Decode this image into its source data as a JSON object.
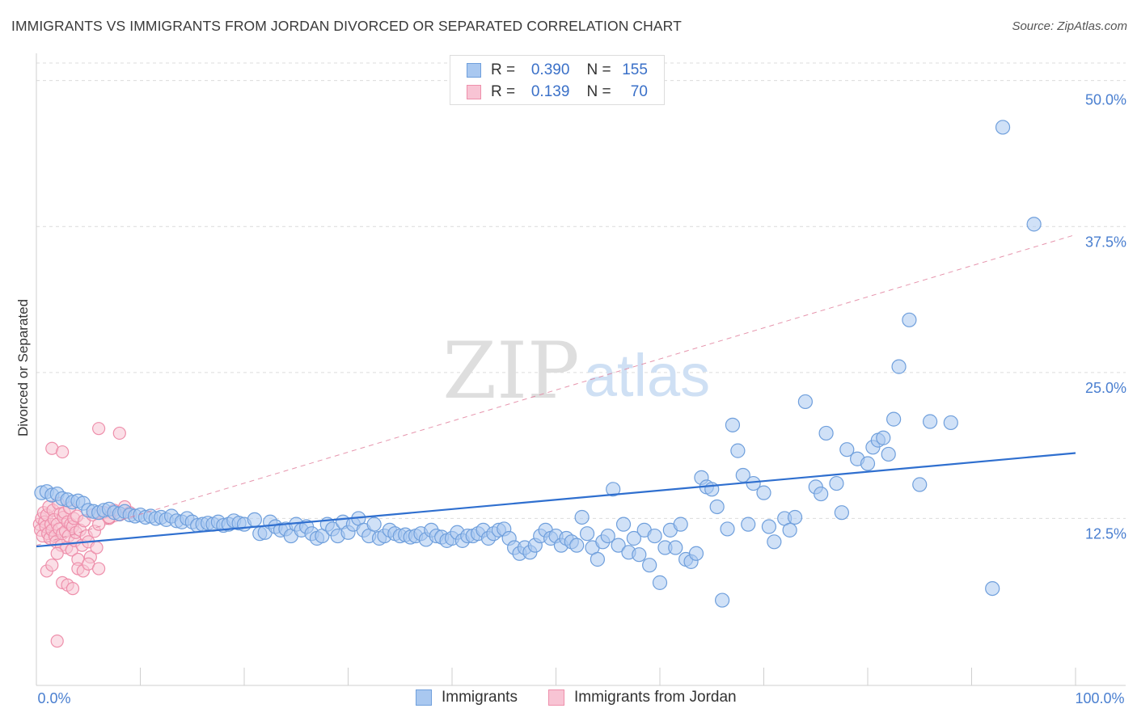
{
  "title": "IMMIGRANTS VS IMMIGRANTS FROM JORDAN DIVORCED OR SEPARATED CORRELATION CHART",
  "source": "Source: ZipAtlas.com",
  "watermark": {
    "zip": "ZIP",
    "atlas": "atlas"
  },
  "legend_top": [
    {
      "r_label": "R =",
      "r_value": "0.390",
      "n_label": "N =",
      "n_value": "155"
    },
    {
      "r_label": "R =",
      "r_value": "0.139",
      "n_label": "N =",
      "n_value": "70"
    }
  ],
  "legend_bottom": [
    "Immigrants",
    "Immigrants from Jordan"
  ],
  "colors": {
    "blue_fill": "#a9c8f0",
    "blue_stroke": "#6f9fdc",
    "blue_line": "#2f6fcf",
    "pink_fill": "#f8c4d4",
    "pink_stroke": "#ee8fab",
    "pink_line": "#e07a98",
    "grid": "#dcdcdc",
    "axis_text": "#4a7fd0"
  },
  "chart_data": {
    "type": "scatter",
    "title": "IMMIGRANTS VS IMMIGRANTS FROM JORDAN DIVORCED OR SEPARATED CORRELATION CHART",
    "xlabel": "",
    "ylabel": "Divorced or Separated",
    "xlim": [
      0,
      100
    ],
    "ylim": [
      0,
      51.5
    ],
    "x_tick_labels": [
      "0.0%",
      "100.0%"
    ],
    "y_ticks": [
      12.5,
      25.0,
      37.5,
      50.0
    ],
    "y_tick_labels": [
      "12.5%",
      "25.0%",
      "37.5%",
      "50.0%"
    ],
    "grid": true,
    "legend_position": "top-center",
    "series": [
      {
        "name": "Immigrants",
        "color": "#6f9fdc",
        "trend": {
          "x": [
            0,
            100
          ],
          "y": [
            10.1,
            18.1
          ],
          "style": "solid"
        },
        "points": [
          [
            0.5,
            14.7
          ],
          [
            1.0,
            14.8
          ],
          [
            1.5,
            14.5
          ],
          [
            2.0,
            14.6
          ],
          [
            2.5,
            14.2
          ],
          [
            3.0,
            14.1
          ],
          [
            3.5,
            13.9
          ],
          [
            4.0,
            14.0
          ],
          [
            4.5,
            13.8
          ],
          [
            5.0,
            13.2
          ],
          [
            5.5,
            13.1
          ],
          [
            6.0,
            13.0
          ],
          [
            6.5,
            13.2
          ],
          [
            7.0,
            13.3
          ],
          [
            7.5,
            13.0
          ],
          [
            8.0,
            12.9
          ],
          [
            8.5,
            13.1
          ],
          [
            9.0,
            12.8
          ],
          [
            9.5,
            12.7
          ],
          [
            10.0,
            12.8
          ],
          [
            10.5,
            12.6
          ],
          [
            11.0,
            12.7
          ],
          [
            11.5,
            12.5
          ],
          [
            12.0,
            12.6
          ],
          [
            12.5,
            12.4
          ],
          [
            13.0,
            12.7
          ],
          [
            13.5,
            12.3
          ],
          [
            14.0,
            12.2
          ],
          [
            14.5,
            12.5
          ],
          [
            15.0,
            12.2
          ],
          [
            15.5,
            11.9
          ],
          [
            16.0,
            12.0
          ],
          [
            16.5,
            12.1
          ],
          [
            17.0,
            12.0
          ],
          [
            17.5,
            12.2
          ],
          [
            18.0,
            11.9
          ],
          [
            18.5,
            12.0
          ],
          [
            19.0,
            12.3
          ],
          [
            19.5,
            12.1
          ],
          [
            20.0,
            12.0
          ],
          [
            21.0,
            12.4
          ],
          [
            21.5,
            11.2
          ],
          [
            22.0,
            11.3
          ],
          [
            22.5,
            12.2
          ],
          [
            23.0,
            11.8
          ],
          [
            23.5,
            11.5
          ],
          [
            24.0,
            11.6
          ],
          [
            24.5,
            11.0
          ],
          [
            25.0,
            12.0
          ],
          [
            25.5,
            11.5
          ],
          [
            26.0,
            11.8
          ],
          [
            26.5,
            11.2
          ],
          [
            27.0,
            10.8
          ],
          [
            27.5,
            11.0
          ],
          [
            28.0,
            12.0
          ],
          [
            28.5,
            11.6
          ],
          [
            29.0,
            11.0
          ],
          [
            29.5,
            12.2
          ],
          [
            30.0,
            11.3
          ],
          [
            30.5,
            12.0
          ],
          [
            31.0,
            12.5
          ],
          [
            31.5,
            11.5
          ],
          [
            32.0,
            11.0
          ],
          [
            32.5,
            12.0
          ],
          [
            33.0,
            10.8
          ],
          [
            33.5,
            11.0
          ],
          [
            34.0,
            11.5
          ],
          [
            34.5,
            11.2
          ],
          [
            35.0,
            11.0
          ],
          [
            35.5,
            11.1
          ],
          [
            36.0,
            10.9
          ],
          [
            36.5,
            11.0
          ],
          [
            37.0,
            11.2
          ],
          [
            37.5,
            10.7
          ],
          [
            38.0,
            11.5
          ],
          [
            38.5,
            11.0
          ],
          [
            39.0,
            10.9
          ],
          [
            39.5,
            10.6
          ],
          [
            40.0,
            10.8
          ],
          [
            40.5,
            11.3
          ],
          [
            41.0,
            10.6
          ],
          [
            41.5,
            11.0
          ],
          [
            42.0,
            11.0
          ],
          [
            42.5,
            11.2
          ],
          [
            43.0,
            11.5
          ],
          [
            43.5,
            10.8
          ],
          [
            44.0,
            11.2
          ],
          [
            44.5,
            11.5
          ],
          [
            45.0,
            11.6
          ],
          [
            45.5,
            10.8
          ],
          [
            46.0,
            10.0
          ],
          [
            46.5,
            9.5
          ],
          [
            47.0,
            10.0
          ],
          [
            47.5,
            9.6
          ],
          [
            48.0,
            10.2
          ],
          [
            48.5,
            11.0
          ],
          [
            49.0,
            11.5
          ],
          [
            49.5,
            10.8
          ],
          [
            50.0,
            11.0
          ],
          [
            50.5,
            10.2
          ],
          [
            51.0,
            10.8
          ],
          [
            51.5,
            10.5
          ],
          [
            52.0,
            10.2
          ],
          [
            52.5,
            12.6
          ],
          [
            53.0,
            11.2
          ],
          [
            53.5,
            10.0
          ],
          [
            54.0,
            9.0
          ],
          [
            54.5,
            10.5
          ],
          [
            55.0,
            11.0
          ],
          [
            55.5,
            15.0
          ],
          [
            56.0,
            10.2
          ],
          [
            56.5,
            12.0
          ],
          [
            57.0,
            9.6
          ],
          [
            57.5,
            10.8
          ],
          [
            58.0,
            9.4
          ],
          [
            58.5,
            11.5
          ],
          [
            59.0,
            8.5
          ],
          [
            59.5,
            11.0
          ],
          [
            60.0,
            7.0
          ],
          [
            60.5,
            10.0
          ],
          [
            61.0,
            11.5
          ],
          [
            61.5,
            10.0
          ],
          [
            62.0,
            12.0
          ],
          [
            62.5,
            9.0
          ],
          [
            63.0,
            8.8
          ],
          [
            63.5,
            9.5
          ],
          [
            64.0,
            16.0
          ],
          [
            64.5,
            15.2
          ],
          [
            65.0,
            15.0
          ],
          [
            65.5,
            13.5
          ],
          [
            66.0,
            5.5
          ],
          [
            66.5,
            11.6
          ],
          [
            67.0,
            20.5
          ],
          [
            67.5,
            18.3
          ],
          [
            68.0,
            16.2
          ],
          [
            68.5,
            12.0
          ],
          [
            69.0,
            15.5
          ],
          [
            70.0,
            14.7
          ],
          [
            70.5,
            11.8
          ],
          [
            71.0,
            10.5
          ],
          [
            72.0,
            12.5
          ],
          [
            72.5,
            11.5
          ],
          [
            73.0,
            12.6
          ],
          [
            74.0,
            22.5
          ],
          [
            75.0,
            15.2
          ],
          [
            75.5,
            14.6
          ],
          [
            76.0,
            19.8
          ],
          [
            77.0,
            15.5
          ],
          [
            77.5,
            13.0
          ],
          [
            78.0,
            18.4
          ],
          [
            79.0,
            17.6
          ],
          [
            80.0,
            17.2
          ],
          [
            80.5,
            18.6
          ],
          [
            81.0,
            19.2
          ],
          [
            81.5,
            19.4
          ],
          [
            82.0,
            18.0
          ],
          [
            82.5,
            21.0
          ],
          [
            83.0,
            25.5
          ],
          [
            84.0,
            29.5
          ],
          [
            85.0,
            15.4
          ],
          [
            86.0,
            20.8
          ],
          [
            88.0,
            20.7
          ],
          [
            93.0,
            46.0
          ],
          [
            92.0,
            6.5
          ],
          [
            96.0,
            37.7
          ]
        ]
      },
      {
        "name": "Immigrants from Jordan",
        "color": "#ee8fab",
        "trend": {
          "x": [
            0,
            100
          ],
          "y": [
            10.2,
            36.8
          ],
          "style": "dashed"
        },
        "points": [
          [
            0.3,
            12.0
          ],
          [
            0.4,
            11.5
          ],
          [
            0.5,
            12.5
          ],
          [
            0.6,
            11.0
          ],
          [
            0.7,
            13.0
          ],
          [
            0.8,
            12.2
          ],
          [
            0.9,
            11.8
          ],
          [
            1.0,
            12.8
          ],
          [
            1.1,
            11.2
          ],
          [
            1.2,
            13.5
          ],
          [
            1.3,
            10.8
          ],
          [
            1.4,
            12.0
          ],
          [
            1.5,
            11.5
          ],
          [
            1.6,
            13.2
          ],
          [
            1.7,
            12.4
          ],
          [
            1.8,
            11.0
          ],
          [
            1.9,
            10.5
          ],
          [
            2.0,
            12.0
          ],
          [
            2.1,
            13.8
          ],
          [
            2.2,
            11.6
          ],
          [
            2.3,
            12.9
          ],
          [
            2.4,
            10.2
          ],
          [
            2.5,
            11.2
          ],
          [
            2.6,
            12.6
          ],
          [
            2.7,
            13.0
          ],
          [
            2.8,
            11.4
          ],
          [
            2.9,
            10.0
          ],
          [
            3.0,
            12.2
          ],
          [
            3.1,
            11.0
          ],
          [
            3.2,
            13.4
          ],
          [
            3.3,
            12.0
          ],
          [
            3.4,
            9.8
          ],
          [
            3.5,
            11.8
          ],
          [
            3.6,
            12.5
          ],
          [
            3.7,
            10.6
          ],
          [
            3.8,
            11.3
          ],
          [
            3.9,
            12.7
          ],
          [
            4.0,
            9.0
          ],
          [
            4.2,
            11.5
          ],
          [
            4.4,
            10.2
          ],
          [
            4.6,
            12.3
          ],
          [
            4.8,
            11.0
          ],
          [
            5.0,
            10.5
          ],
          [
            5.2,
            9.2
          ],
          [
            5.4,
            12.8
          ],
          [
            5.6,
            11.4
          ],
          [
            5.8,
            10.0
          ],
          [
            6.0,
            12.0
          ],
          [
            6.5,
            13.0
          ],
          [
            7.0,
            12.5
          ],
          [
            7.5,
            13.2
          ],
          [
            8.0,
            12.8
          ],
          [
            8.5,
            13.5
          ],
          [
            9.0,
            13.0
          ],
          [
            1.0,
            8.0
          ],
          [
            1.5,
            8.5
          ],
          [
            2.0,
            9.5
          ],
          [
            2.5,
            7.0
          ],
          [
            3.0,
            6.8
          ],
          [
            3.5,
            6.5
          ],
          [
            4.0,
            8.2
          ],
          [
            4.5,
            8.0
          ],
          [
            5.0,
            8.6
          ],
          [
            6.0,
            8.2
          ],
          [
            1.5,
            18.5
          ],
          [
            2.5,
            18.2
          ],
          [
            6.0,
            20.2
          ],
          [
            8.0,
            19.8
          ],
          [
            2.0,
            2.0
          ],
          [
            7.0,
            12.6
          ]
        ]
      }
    ]
  }
}
